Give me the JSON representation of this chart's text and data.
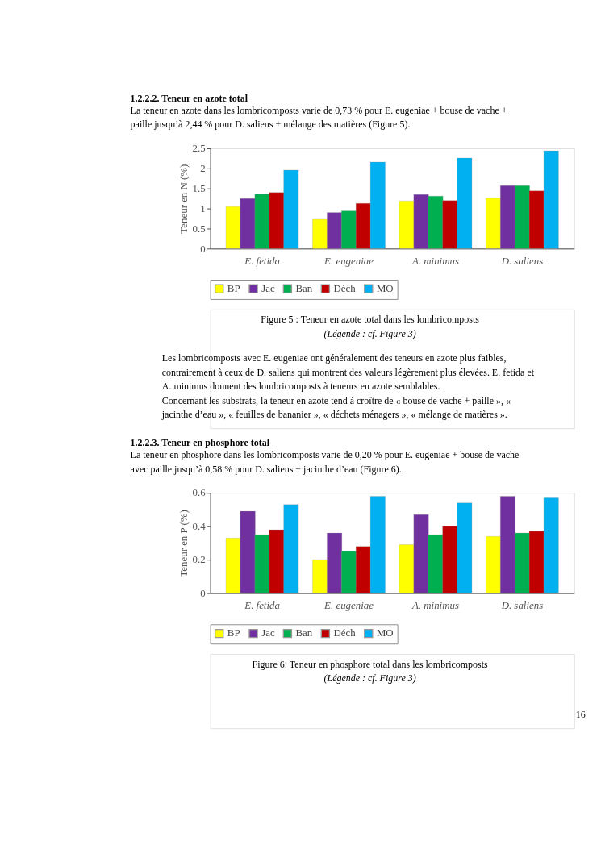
{
  "chart_data": [
    {
      "type": "bar",
      "title": "1.2.2.2.   Teneur en azote total",
      "subtitle": "La teneur en azote dans les lombricomposts varie de 0,73 % pour E. eugeniae + bouse de vache + paille jusqu’à 2,44 % pour D. saliens + mélange des matières (Figure 5).",
      "ylabel": "Teneur en N (%)",
      "categories": [
        "E. fetida",
        "E. eugeniae",
        "A. minimus",
        "D. saliens"
      ],
      "series": [
        {
          "name": "BP",
          "color": "#ffff00",
          "values": [
            1.05,
            0.73,
            1.19,
            1.26
          ]
        },
        {
          "name": "Jac",
          "color": "#7030a0",
          "values": [
            1.25,
            0.9,
            1.35,
            1.57
          ]
        },
        {
          "name": "Ban",
          "color": "#00b050",
          "values": [
            1.36,
            0.94,
            1.31,
            1.57
          ]
        },
        {
          "name": "Déch",
          "color": "#c00000",
          "values": [
            1.4,
            1.13,
            1.2,
            1.44
          ]
        },
        {
          "name": "MO",
          "color": "#00b0f0",
          "values": [
            1.96,
            2.16,
            2.26,
            2.44
          ]
        }
      ],
      "ylim": [
        0,
        2.5
      ],
      "yticks": [
        0,
        0.5,
        1,
        1.5,
        2,
        2.5
      ],
      "grid": false,
      "legend": "bottom",
      "annotations": [
        "Figure 5 : Teneur en azote total dans les lombricomposts",
        "(Légende : cf. Figure 3)",
        "Les lombricomposts avec E. eugeniae ont généralement des teneurs en azote plus faibles, contrairement à ceux de D. saliens qui montrent des valeurs légèrement plus élevées. E. fetida et A. minimus donnent des lombricomposts à teneurs en azote semblables.",
        "Concernant les substrats, la teneur en azote tend à croître de « bouse de vache + paille », « jacinthe d’eau », « feuilles de bananier », « déchets ménagers », « mélange de matières »."
      ]
    },
    {
      "type": "bar",
      "title": "1.2.2.3.   Teneur en phosphore total",
      "subtitle": "La teneur en phosphore dans les lombricomposts varie de 0,20 % pour E. eugeniae + bouse de vache avec paille jusqu’à 0,58 % pour D. saliens + jacinthe d’eau (Figure 6).",
      "ylabel": "Teneur en P (%)",
      "categories": [
        "E. fetida",
        "E. eugeniae",
        "A. minimus",
        "D. saliens"
      ],
      "series": [
        {
          "name": "BP",
          "color": "#ffff00",
          "values": [
            0.33,
            0.2,
            0.29,
            0.34
          ]
        },
        {
          "name": "Jac",
          "color": "#7030a0",
          "values": [
            0.49,
            0.36,
            0.47,
            0.58
          ]
        },
        {
          "name": "Ban",
          "color": "#00b050",
          "values": [
            0.35,
            0.25,
            0.35,
            0.36
          ]
        },
        {
          "name": "Déch",
          "color": "#c00000",
          "values": [
            0.38,
            0.28,
            0.4,
            0.37
          ]
        },
        {
          "name": "MO",
          "color": "#00b0f0",
          "values": [
            0.53,
            0.58,
            0.54,
            0.57
          ]
        }
      ],
      "ylim": [
        0,
        0.6
      ],
      "yticks": [
        0,
        0.2,
        0.4,
        0.6
      ],
      "grid": false,
      "legend": "bottom",
      "annotations": [
        "Figure 6: Teneur en phosphore total dans les lombricomposts",
        "(Légende : cf. Figure 3)",
        "16"
      ]
    }
  ]
}
